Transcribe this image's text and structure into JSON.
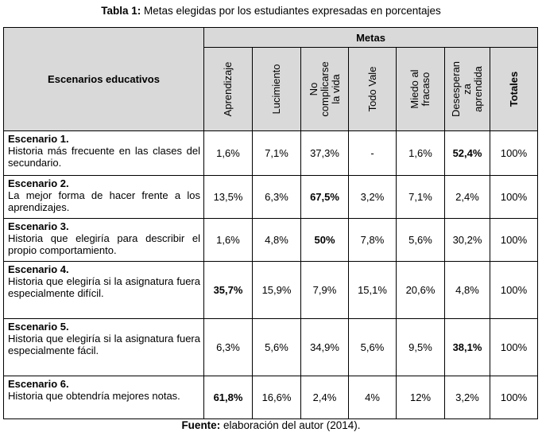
{
  "caption": {
    "prefix": "Tabla 1:",
    "text": " Metas elegidas por los estudiantes expresadas en porcentajes"
  },
  "table": {
    "row_header": "Escenarios educativos",
    "group_header": "Metas",
    "columns": [
      "Aprendizaje",
      "Lucimiento",
      "No\ncomplicarse\nla vida",
      "Todo Vale",
      "Miedo al\nfracaso",
      "Desesperan\nza\naprendida",
      "Totales"
    ],
    "rows": [
      {
        "title": "Escenario 1.",
        "desc": "Historia más frecuente en las clases del secundario.",
        "values": [
          "1,6%",
          "7,1%",
          "37,3%",
          "-",
          "1,6%",
          "52,4%",
          "100%"
        ],
        "bold": [
          5
        ]
      },
      {
        "title": "Escenario 2.",
        "desc": "La mejor forma de hacer frente a los aprendizajes.",
        "values": [
          "13,5%",
          "6,3%",
          "67,5%",
          "3,2%",
          "7,1%",
          "2,4%",
          "100%"
        ],
        "bold": [
          2
        ]
      },
      {
        "title": "Escenario 3.",
        "desc": "Historia que elegiría para describir el propio comportamiento.",
        "values": [
          "1,6%",
          "4,8%",
          "50%",
          "7,8%",
          "5,6%",
          "30,2%",
          "100%"
        ],
        "bold": [
          2
        ]
      },
      {
        "title": "Escenario 4.",
        "desc": "Historia que elegiría si la asignatura fuera especialmente difícil.",
        "values": [
          "35,7%",
          "15,9%",
          "7,9%",
          "15,1%",
          "20,6%",
          "4,8%",
          "100%"
        ],
        "bold": [
          0
        ]
      },
      {
        "title": "Escenario 5.",
        "desc": "Historia que elegiría si la asignatura fuera especialmente fácil.",
        "values": [
          "6,3%",
          "5,6%",
          "34,9%",
          "5,6%",
          "9,5%",
          "38,1%",
          "100%"
        ],
        "bold": [
          5
        ]
      },
      {
        "title": "Escenario 6.",
        "desc": "Historia que obtendría mejores notas.",
        "values": [
          "61,8%",
          "16,6%",
          "2,4%",
          "4%",
          "12%",
          "3,2%",
          "100%"
        ],
        "bold": [
          0
        ]
      }
    ]
  },
  "source": {
    "prefix": "Fuente:",
    "text": " elaboración del autor (2014)."
  }
}
